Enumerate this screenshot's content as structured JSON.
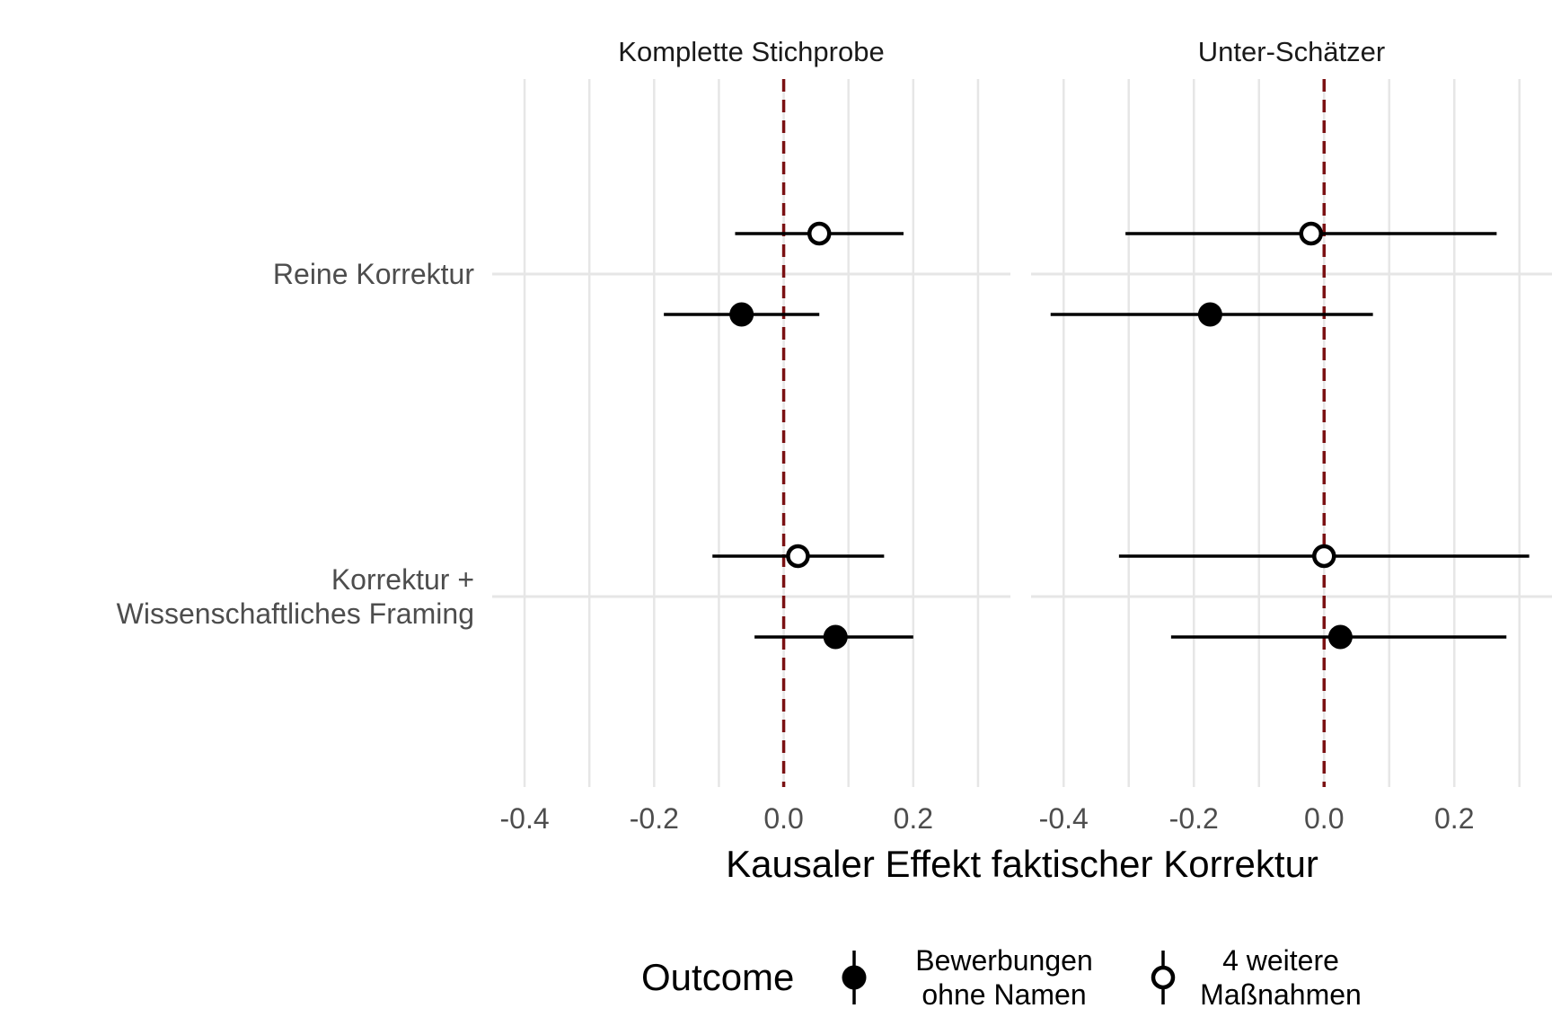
{
  "chart_data": {
    "type": "scatter",
    "subtype": "coefficient-plot-with-confidence-intervals",
    "xlabel": "Kausaler Effekt faktischer Korrektur",
    "ylabel": "",
    "xlim": [
      -0.45,
      0.35
    ],
    "xticks": [
      -0.4,
      -0.2,
      0.0,
      0.2
    ],
    "xtick_labels": [
      "-0.4",
      "-0.2",
      "0.0",
      "0.2"
    ],
    "reference_line": {
      "x": 0,
      "style": "dashed",
      "color": "#7b1113"
    },
    "grid": true,
    "categories": [
      {
        "id": "reine",
        "lines": [
          "Reine Korrektur"
        ]
      },
      {
        "id": "framing",
        "lines": [
          "Korrektur +",
          "Wissenschaftliches Framing"
        ]
      }
    ],
    "panels": [
      {
        "title": "Komplette Stichprobe",
        "series": [
          {
            "name": "Bewerbungen ohne Namen",
            "marker": "filled",
            "points": [
              {
                "category": "reine",
                "estimate": -0.065,
                "ci_low": -0.185,
                "ci_high": 0.055
              },
              {
                "category": "framing",
                "estimate": 0.08,
                "ci_low": -0.045,
                "ci_high": 0.2
              }
            ]
          },
          {
            "name": "4 weitere Maßnahmen",
            "marker": "open",
            "points": [
              {
                "category": "reine",
                "estimate": 0.055,
                "ci_low": -0.075,
                "ci_high": 0.185
              },
              {
                "category": "framing",
                "estimate": 0.022,
                "ci_low": -0.11,
                "ci_high": 0.155
              }
            ]
          }
        ]
      },
      {
        "title": "Unter-Schätzer",
        "series": [
          {
            "name": "Bewerbungen ohne Namen",
            "marker": "filled",
            "points": [
              {
                "category": "reine",
                "estimate": -0.175,
                "ci_low": -0.42,
                "ci_high": 0.075
              },
              {
                "category": "framing",
                "estimate": 0.025,
                "ci_low": -0.235,
                "ci_high": 0.28
              }
            ]
          },
          {
            "name": "4 weitere Maßnahmen",
            "marker": "open",
            "points": [
              {
                "category": "reine",
                "estimate": -0.02,
                "ci_low": -0.305,
                "ci_high": 0.265
              },
              {
                "category": "framing",
                "estimate": 0.0,
                "ci_low": -0.315,
                "ci_high": 0.315
              }
            ]
          }
        ]
      }
    ],
    "legend": {
      "title": "Outcome",
      "position": "bottom",
      "entries": [
        {
          "marker": "filled",
          "lines": [
            "Bewerbungen",
            "ohne Namen"
          ]
        },
        {
          "marker": "open",
          "lines": [
            "4 weitere",
            " Maßnahmen"
          ]
        }
      ]
    },
    "colors": {
      "grid": "#e6e6e6",
      "marks": "#000000",
      "reference": "#7b1113",
      "text": "#4d4d4d"
    }
  }
}
